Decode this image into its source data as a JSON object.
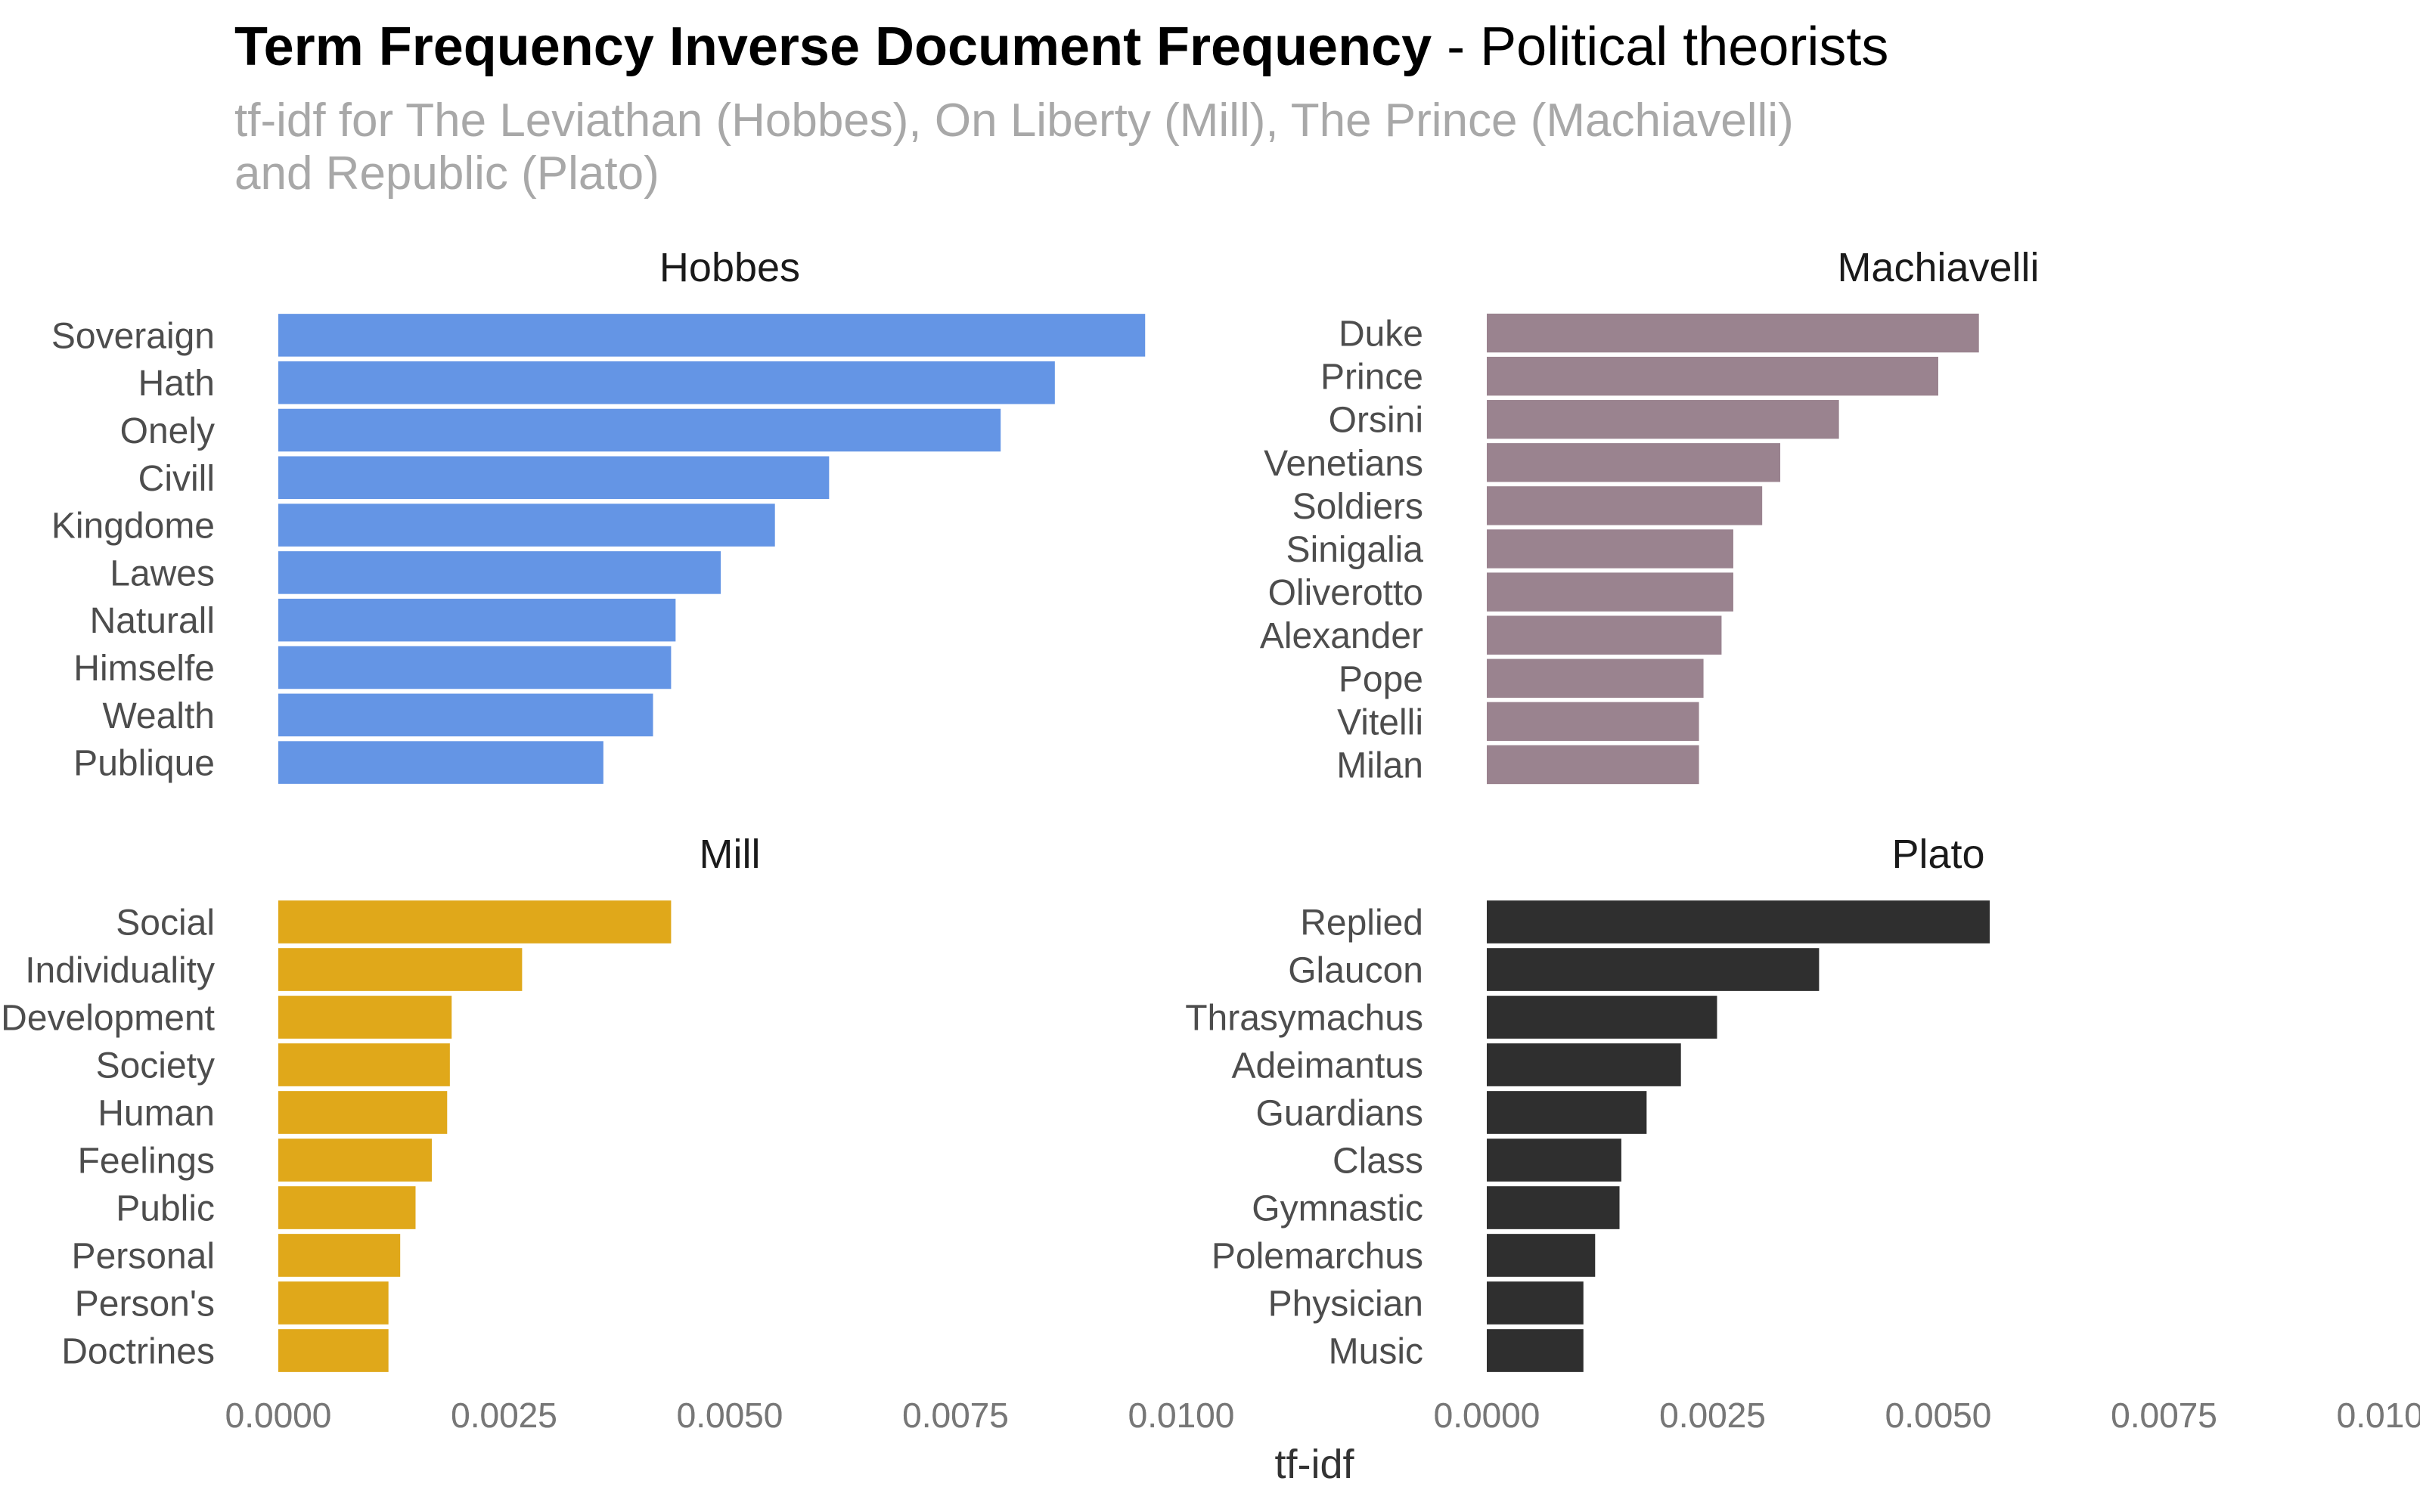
{
  "title": {
    "bold": "Term Frequency Inverse Document Frequency",
    "rest": " - Political theorists"
  },
  "subtitle": {
    "line1": "tf-idf for The Leviathan (Hobbes), On Liberty (Mill), The Prince (Machiavelli)",
    "line2": "and Republic (Plato)"
  },
  "chart_data": {
    "type": "bar",
    "orientation": "horizontal",
    "xlabel": "tf-idf",
    "xlim": [
      0,
      0.01
    ],
    "x_ticks": [
      "0.0000",
      "0.0025",
      "0.0050",
      "0.0075",
      "0.0100"
    ],
    "x_tick_values": [
      0,
      0.0025,
      0.005,
      0.0075,
      0.01
    ],
    "grid": false,
    "panels": [
      {
        "name": "Hobbes",
        "color": "#6495E5",
        "categories": [
          "Soveraign",
          "Hath",
          "Onely",
          "Civill",
          "Kingdome",
          "Lawes",
          "Naturall",
          "Himselfe",
          "Wealth",
          "Publique"
        ],
        "values": [
          0.0096,
          0.0086,
          0.008,
          0.0061,
          0.0055,
          0.0049,
          0.0044,
          0.00435,
          0.00415,
          0.0036
        ]
      },
      {
        "name": "Machiavelli",
        "color": "#9A838F",
        "categories": [
          "Duke",
          "Prince",
          "Orsini",
          "Venetians",
          "Soldiers",
          "Sinigalia",
          "Oliverotto",
          "Alexander",
          "Pope",
          "Vitelli",
          "Milan"
        ],
        "values": [
          0.00545,
          0.005,
          0.0039,
          0.00325,
          0.00305,
          0.00273,
          0.00273,
          0.0026,
          0.0024,
          0.00235,
          0.00235
        ]
      },
      {
        "name": "Mill",
        "color": "#E0A81A",
        "categories": [
          "Social",
          "Individuality",
          "Development",
          "Society",
          "Human",
          "Feelings",
          "Public",
          "Personal",
          "Person's",
          "Doctrines"
        ],
        "values": [
          0.00435,
          0.0027,
          0.00192,
          0.0019,
          0.00187,
          0.0017,
          0.00152,
          0.00135,
          0.00122,
          0.00122
        ]
      },
      {
        "name": "Plato",
        "color": "#2F2F2F",
        "categories": [
          "Replied",
          "Glaucon",
          "Thrasymachus",
          "Adeimantus",
          "Guardians",
          "Class",
          "Gymnastic",
          "Polemarchus",
          "Physician",
          "Music"
        ],
        "values": [
          0.00557,
          0.00368,
          0.00255,
          0.00215,
          0.00177,
          0.00149,
          0.00147,
          0.0012,
          0.00107,
          0.00107
        ]
      }
    ]
  }
}
